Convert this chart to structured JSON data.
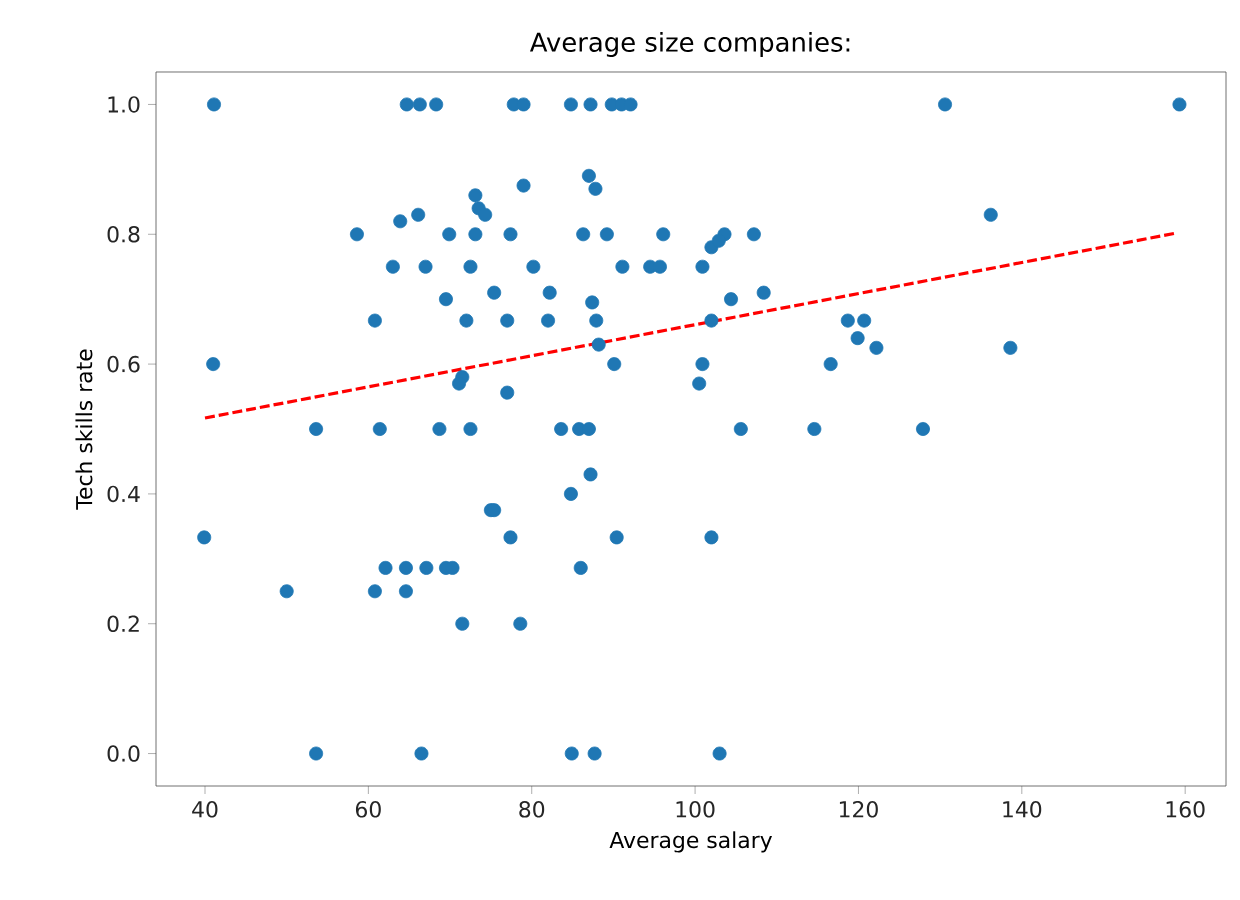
{
  "chart_data": {
    "type": "scatter",
    "title": "Average size companies:",
    "xlabel": "Average salary",
    "ylabel": "Tech skills rate",
    "xlim": [
      34,
      165
    ],
    "ylim": [
      -0.05,
      1.05
    ],
    "xticks": [
      40,
      60,
      80,
      100,
      120,
      140,
      160
    ],
    "yticks": [
      {
        "value": 0,
        "label": "0.0"
      },
      {
        "value": 0.2,
        "label": "0.2"
      },
      {
        "value": 0.4,
        "label": "0.4"
      },
      {
        "value": 0.6,
        "label": "0.6"
      },
      {
        "value": 0.8,
        "label": "0.8"
      },
      {
        "value": 1,
        "label": "1.0"
      }
    ],
    "series": [
      {
        "marker": "circle",
        "color": "#1f77b4",
        "x": [
          41.1,
          64.7,
          66.3,
          68.3,
          77.8,
          79.0,
          84.8,
          87.2,
          89.8,
          91.0,
          92.1,
          130.6,
          159.3,
          87.0,
          87.8,
          79.0,
          73.1,
          73.5,
          74.3,
          66.1,
          136.2,
          63.9,
          58.6,
          69.9,
          73.1,
          77.4,
          86.3,
          89.2,
          96.1,
          103.6,
          107.2,
          102.0,
          102.9,
          63.0,
          67.0,
          72.5,
          80.2,
          91.1,
          94.5,
          95.7,
          100.9,
          75.4,
          82.2,
          108.4,
          69.5,
          104.4,
          87.4,
          60.8,
          72.0,
          77.0,
          82.0,
          87.9,
          102.0,
          118.7,
          120.7,
          119.9,
          122.2,
          138.6,
          88.2,
          41.0,
          90.1,
          100.9,
          116.6,
          71.5,
          71.1,
          100.5,
          77.0,
          53.6,
          61.4,
          68.7,
          72.5,
          83.6,
          85.8,
          87.0,
          105.6,
          114.6,
          127.9,
          87.2,
          84.8,
          75.0,
          75.4,
          39.9,
          77.4,
          90.4,
          102.0,
          62.1,
          64.6,
          67.1,
          69.5,
          70.3,
          86.0,
          50.0,
          60.8,
          64.6,
          71.5,
          78.6,
          53.6,
          66.5,
          84.9,
          87.7,
          103.0
        ],
        "values": [
          1,
          1,
          1,
          1,
          1,
          1,
          1,
          1,
          1,
          1,
          1,
          1,
          1,
          0.89,
          0.87,
          0.875,
          0.86,
          0.84,
          0.83,
          0.83,
          0.83,
          0.82,
          0.8,
          0.8,
          0.8,
          0.8,
          0.8,
          0.8,
          0.8,
          0.8,
          0.8,
          0.78,
          0.79,
          0.75,
          0.75,
          0.75,
          0.75,
          0.75,
          0.75,
          0.75,
          0.75,
          0.71,
          0.71,
          0.71,
          0.7,
          0.7,
          0.695,
          0.667,
          0.667,
          0.667,
          0.667,
          0.667,
          0.667,
          0.667,
          0.667,
          0.64,
          0.625,
          0.625,
          0.63,
          0.6,
          0.6,
          0.6,
          0.6,
          0.58,
          0.57,
          0.57,
          0.556,
          0.5,
          0.5,
          0.5,
          0.5,
          0.5,
          0.5,
          0.5,
          0.5,
          0.5,
          0.5,
          0.43,
          0.4,
          0.375,
          0.375,
          0.333,
          0.333,
          0.333,
          0.333,
          0.286,
          0.286,
          0.286,
          0.286,
          0.286,
          0.286,
          0.25,
          0.25,
          0.25,
          0.2,
          0.2,
          0,
          0,
          0,
          0,
          0
        ]
      },
      {
        "type": "line",
        "color": "#ff0000",
        "line_style": "dashed",
        "x": [
          40,
          159
        ],
        "values": [
          0.517,
          0.802
        ]
      }
    ]
  }
}
